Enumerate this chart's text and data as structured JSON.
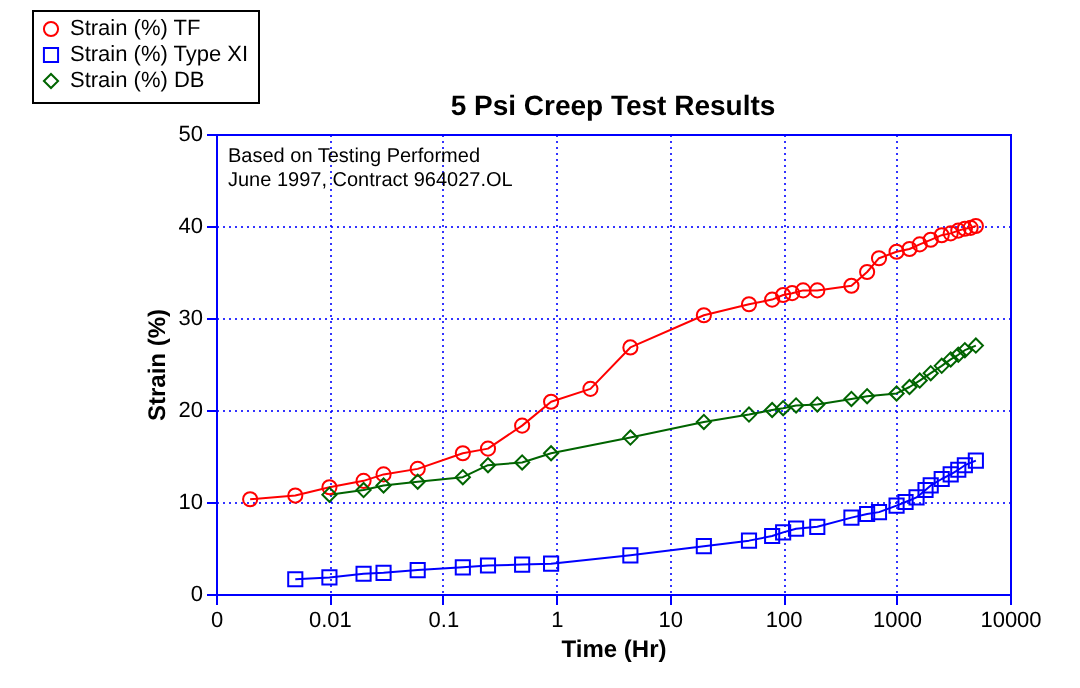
{
  "chart_data": {
    "type": "line",
    "title": "5 Psi Creep Test Results",
    "xlabel": "Time (Hr)",
    "ylabel": "Strain (%)",
    "annotations": [
      "Based on Testing Performed",
      "June 1997, Contract 964027.OL"
    ],
    "log": "x",
    "grid": true,
    "legend": "top left",
    "line_style": "solid",
    "xlim": [
      0.001,
      10000
    ],
    "xticks": [
      {
        "value": 0.001,
        "label": "0"
      },
      0.01,
      0.1,
      1,
      10,
      100,
      1000,
      10000
    ],
    "ylim": [
      0,
      50
    ],
    "yticks": [
      0,
      10,
      20,
      30,
      40,
      50
    ],
    "series": [
      {
        "name": "Strain (%) TF",
        "color": "#ff0000",
        "marker": "circle",
        "x": [
          0.002,
          0.005,
          0.01,
          0.02,
          0.03,
          0.06,
          0.15,
          0.25,
          0.5,
          0.9,
          2,
          4.5,
          20,
          50,
          80,
          100,
          120,
          150,
          200,
          400,
          550,
          700,
          1000,
          1300,
          1600,
          2000,
          2500,
          3000,
          3500,
          4000,
          4500,
          5000
        ],
        "values": [
          10.3,
          10.7,
          11.6,
          12.3,
          13,
          13.6,
          15.3,
          15.8,
          18.3,
          20.9,
          22.3,
          26.8,
          30.3,
          31.5,
          32,
          32.5,
          32.7,
          33,
          33,
          33.5,
          35,
          36.5,
          37.2,
          37.5,
          38,
          38.5,
          39,
          39.2,
          39.5,
          39.7,
          39.8,
          40
        ]
      },
      {
        "name": "Strain (%) Type XI",
        "color": "#0000ff",
        "marker": "square",
        "x": [
          0.005,
          0.01,
          0.02,
          0.03,
          0.06,
          0.15,
          0.25,
          0.5,
          0.9,
          4.5,
          20,
          50,
          80,
          100,
          130,
          200,
          400,
          550,
          700,
          1000,
          1200,
          1500,
          1800,
          2000,
          2500,
          3000,
          3500,
          4000,
          5000
        ],
        "values": [
          1.6,
          1.8,
          2.2,
          2.3,
          2.6,
          2.9,
          3.1,
          3.2,
          3.3,
          4.2,
          5.2,
          5.8,
          6.3,
          6.7,
          7.1,
          7.3,
          8.3,
          8.7,
          8.9,
          9.6,
          10,
          10.5,
          11.3,
          11.8,
          12.5,
          13,
          13.5,
          14,
          14.5
        ]
      },
      {
        "name": "Strain (%) DB",
        "color": "#006400",
        "marker": "diamond",
        "x": [
          0.01,
          0.02,
          0.03,
          0.06,
          0.15,
          0.25,
          0.5,
          0.9,
          4.5,
          20,
          50,
          80,
          100,
          130,
          200,
          400,
          550,
          1000,
          1300,
          1600,
          2000,
          2500,
          3000,
          3500,
          4000,
          5000
        ],
        "values": [
          10.8,
          11.3,
          11.8,
          12.2,
          12.7,
          14,
          14.3,
          15.3,
          17,
          18.7,
          19.5,
          20,
          20.2,
          20.5,
          20.6,
          21.2,
          21.5,
          21.8,
          22.5,
          23.2,
          24,
          24.8,
          25.5,
          26,
          26.5,
          27
        ]
      }
    ]
  }
}
